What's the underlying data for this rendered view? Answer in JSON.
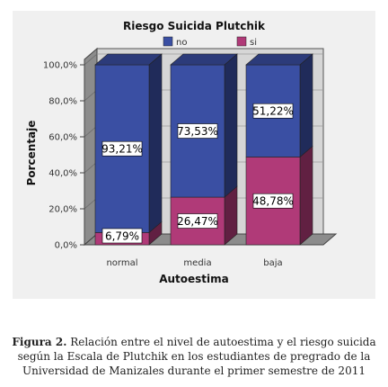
{
  "chart_data": {
    "type": "bar",
    "stacked": true,
    "title": "Riesgo Suicida Plutchik",
    "xlabel": "Autoestima",
    "ylabel": "Porcentaje",
    "categories": [
      "normal",
      "media",
      "baja"
    ],
    "series": [
      {
        "name": "no",
        "color": "#3a4fa3",
        "values": [
          93.21,
          73.53,
          51.22
        ],
        "labels": [
          "93,21%",
          "73,53%",
          "51,22%"
        ]
      },
      {
        "name": "si",
        "color": "#b03a78",
        "values": [
          6.79,
          26.47,
          48.78
        ],
        "labels": [
          "6,79%",
          "26,47%",
          "48,78%"
        ]
      }
    ],
    "ylim": [
      0,
      100
    ],
    "yticks": [
      "0,0%",
      "20,0%",
      "40,0%",
      "60,0%",
      "80,0%",
      "100,0%"
    ],
    "grid": true,
    "legend": "top-center"
  },
  "caption": {
    "label": "Figura 2.",
    "text": " Relación entre el nivel de autoestima y el riesgo suicida según la Escala de Plutchik en los estudiantes de pregrado de la Universidad de Manizales durante el primer semestre de 2011"
  }
}
